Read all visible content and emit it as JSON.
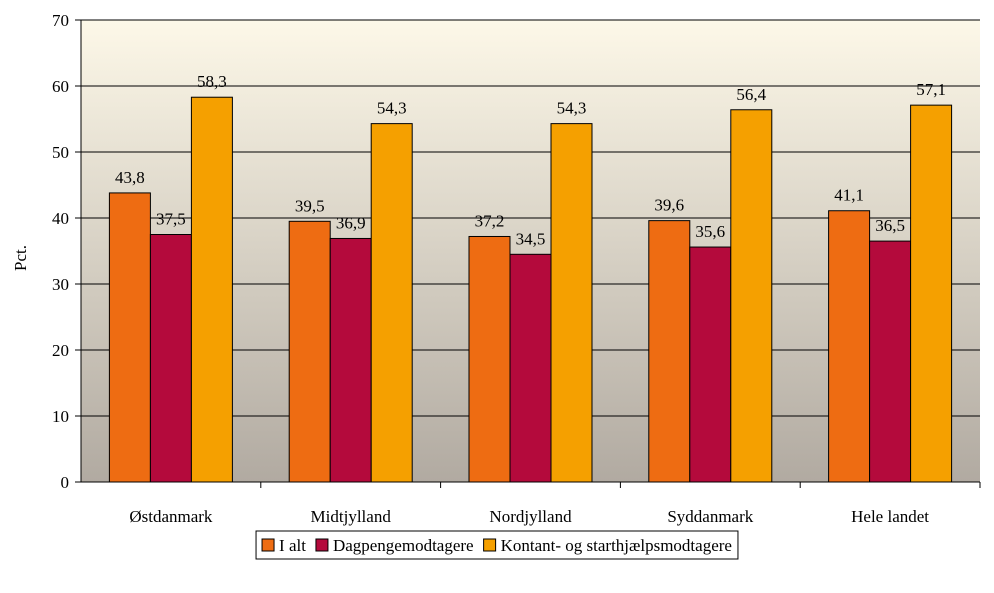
{
  "chart_data": {
    "type": "bar",
    "categories": [
      "Østdanmark",
      "Midtjylland",
      "Nordjylland",
      "Syddanmark",
      "Hele landet"
    ],
    "series": [
      {
        "name": "I alt",
        "values": [
          43.8,
          39.5,
          37.2,
          39.6,
          41.1
        ],
        "labels": [
          "43,8",
          "39,5",
          "37,2",
          "39,6",
          "41,1"
        ],
        "color": "#EE6C12"
      },
      {
        "name": "Dagpengemodtagere",
        "values": [
          37.5,
          36.9,
          34.5,
          35.6,
          36.5
        ],
        "labels": [
          "37,5",
          "36,9",
          "34,5",
          "35,6",
          "36,5"
        ],
        "color": "#B40A3C"
      },
      {
        "name": "Kontant- og starthjælpsmodtagere",
        "values": [
          58.3,
          54.3,
          54.3,
          56.4,
          57.1
        ],
        "labels": [
          "58,3",
          "54,3",
          "54,3",
          "56,4",
          "57,1"
        ],
        "color": "#F5A000"
      }
    ],
    "ylabel": "Pct.",
    "ylim": [
      0,
      70
    ],
    "yticks": [
      0,
      10,
      20,
      30,
      40,
      50,
      60,
      70
    ],
    "grid": true,
    "legend": "bottom",
    "plot_background": {
      "top": "#FDF8E8",
      "bottom": "#B1AAA1"
    }
  }
}
